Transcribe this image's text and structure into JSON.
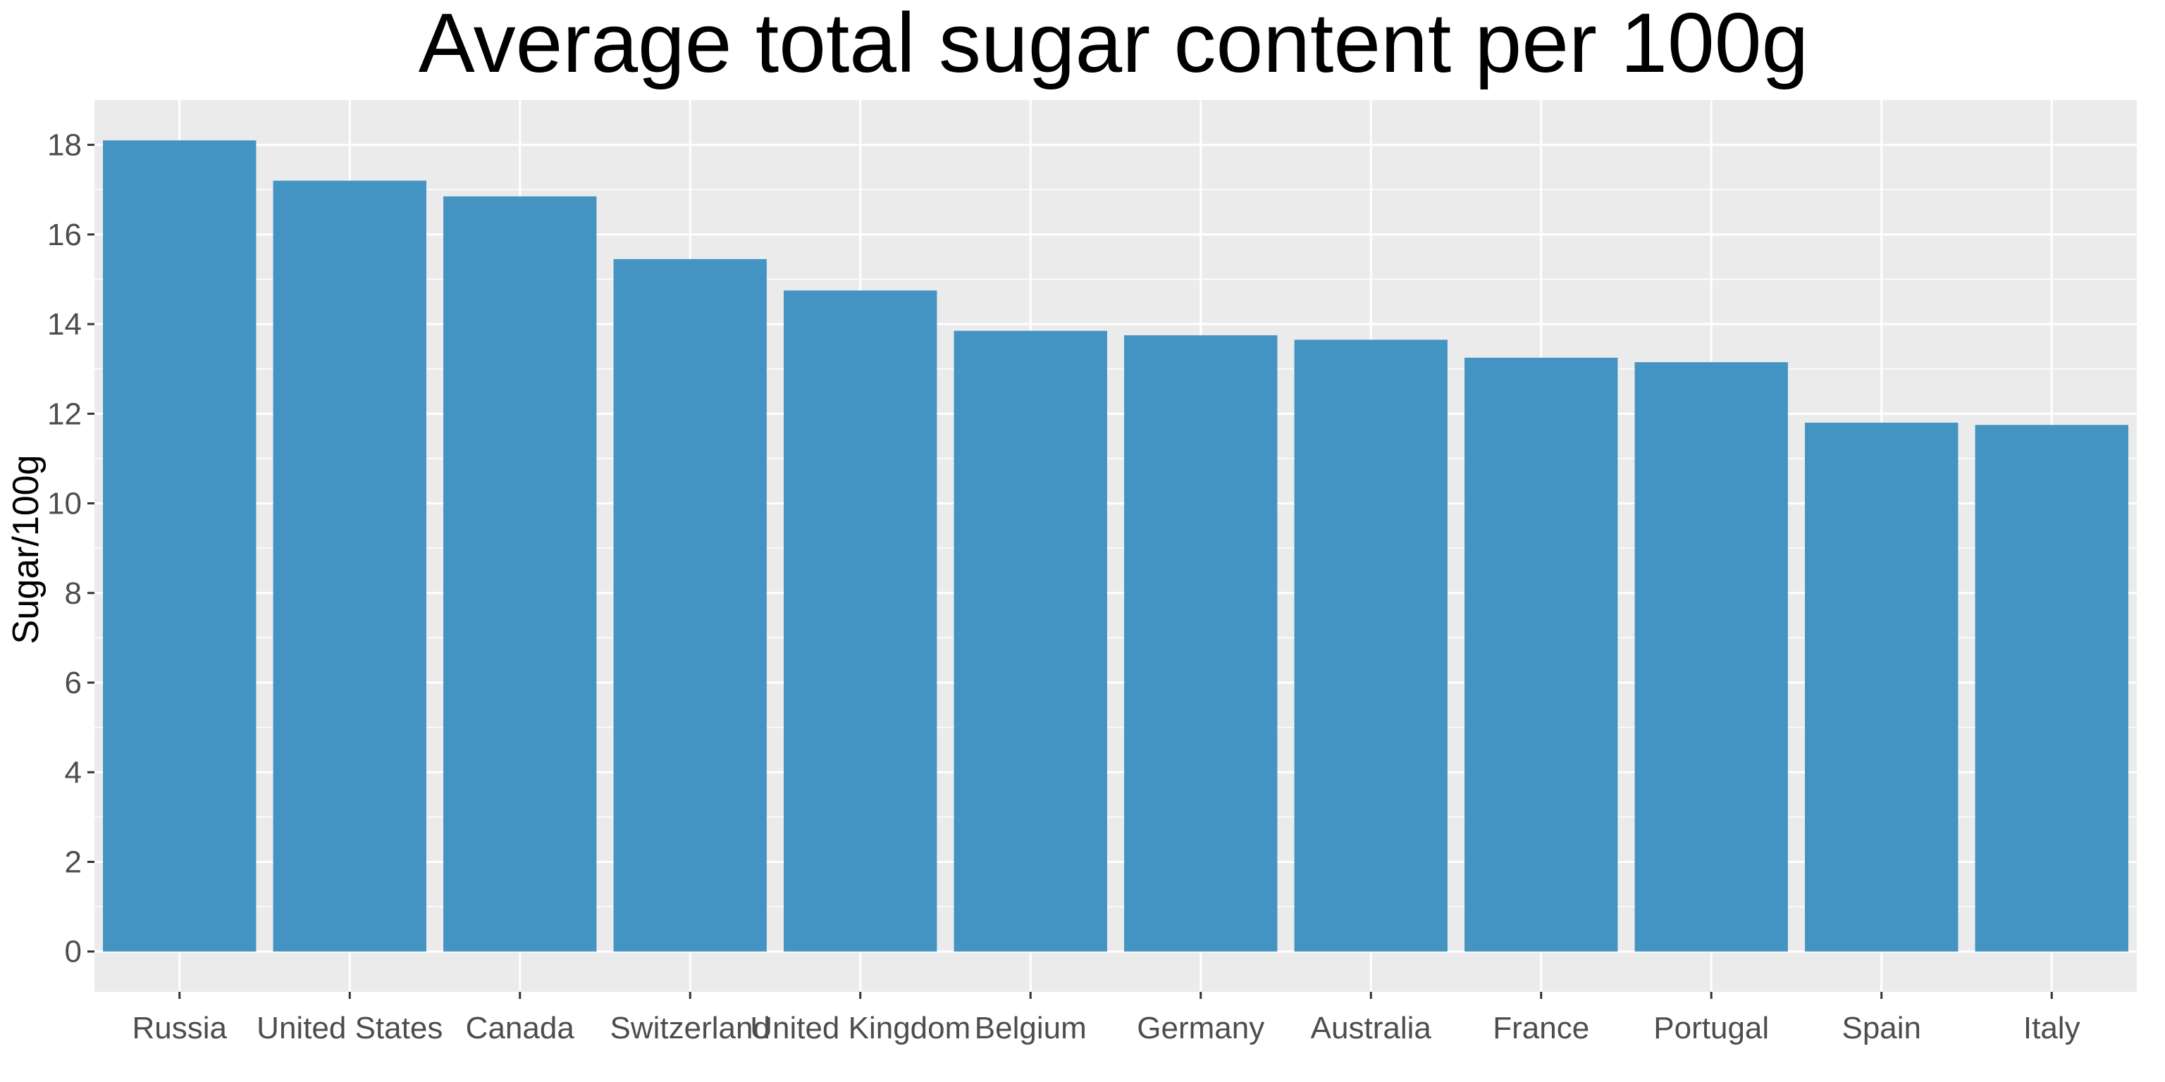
{
  "chart_data": {
    "type": "bar",
    "title": "Average total sugar content per 100g",
    "xlabel": "",
    "ylabel": "Sugar/100g",
    "categories": [
      "Russia",
      "United States",
      "Canada",
      "Switzerland",
      "United Kingdom",
      "Belgium",
      "Germany",
      "Australia",
      "France",
      "Portugal",
      "Spain",
      "Italy"
    ],
    "values": [
      18.1,
      17.2,
      16.85,
      15.45,
      14.75,
      13.85,
      13.75,
      13.65,
      13.25,
      13.15,
      11.8,
      11.75
    ],
    "y_ticks": [
      "0",
      "2",
      "4",
      "6",
      "8",
      "10",
      "12",
      "14",
      "16",
      "18"
    ],
    "ylim": [
      -0.9,
      19.0
    ],
    "grid": true,
    "colors": {
      "bar": "#4393C3",
      "panel": "#EBEBEB",
      "grid": "#FFFFFF"
    }
  }
}
